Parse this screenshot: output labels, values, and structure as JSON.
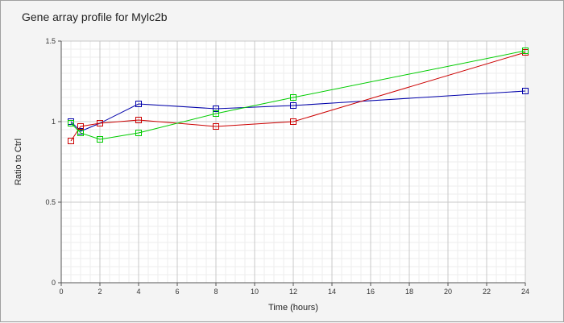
{
  "chart_data": {
    "type": "line",
    "title": "Gene array profile for Mylc2b",
    "xlabel": "Time (hours)",
    "ylabel": "Ratio to Ctrl",
    "xlim": [
      0,
      24
    ],
    "ylim": [
      0,
      1.5
    ],
    "x_ticks": [
      0,
      2,
      4,
      6,
      8,
      10,
      12,
      14,
      16,
      18,
      20,
      22,
      24
    ],
    "y_ticks": [
      0,
      0.5,
      1,
      1.5
    ],
    "y_tick_labels": [
      "0",
      "0.5",
      "1",
      "1.5"
    ],
    "grid": true,
    "legend": "none",
    "marker": "square",
    "series": [
      {
        "color": "#0000aa",
        "points": [
          [
            0.5,
            1.0
          ],
          [
            1,
            0.94
          ],
          [
            2,
            0.99
          ],
          [
            4,
            1.11
          ],
          [
            8,
            1.08
          ],
          [
            12,
            1.1
          ],
          [
            24,
            1.19
          ]
        ]
      },
      {
        "color": "#cc0000",
        "points": [
          [
            0.5,
            0.88
          ],
          [
            1,
            0.97
          ],
          [
            2,
            0.99
          ],
          [
            4,
            1.01
          ],
          [
            8,
            0.97
          ],
          [
            12,
            1.0
          ],
          [
            24,
            1.43
          ]
        ]
      },
      {
        "color": "#00cc00",
        "points": [
          [
            0.5,
            0.99
          ],
          [
            1,
            0.93
          ],
          [
            2,
            0.89
          ],
          [
            4,
            0.93
          ],
          [
            8,
            1.05
          ],
          [
            12,
            1.15
          ],
          [
            24,
            1.44
          ]
        ]
      }
    ]
  }
}
